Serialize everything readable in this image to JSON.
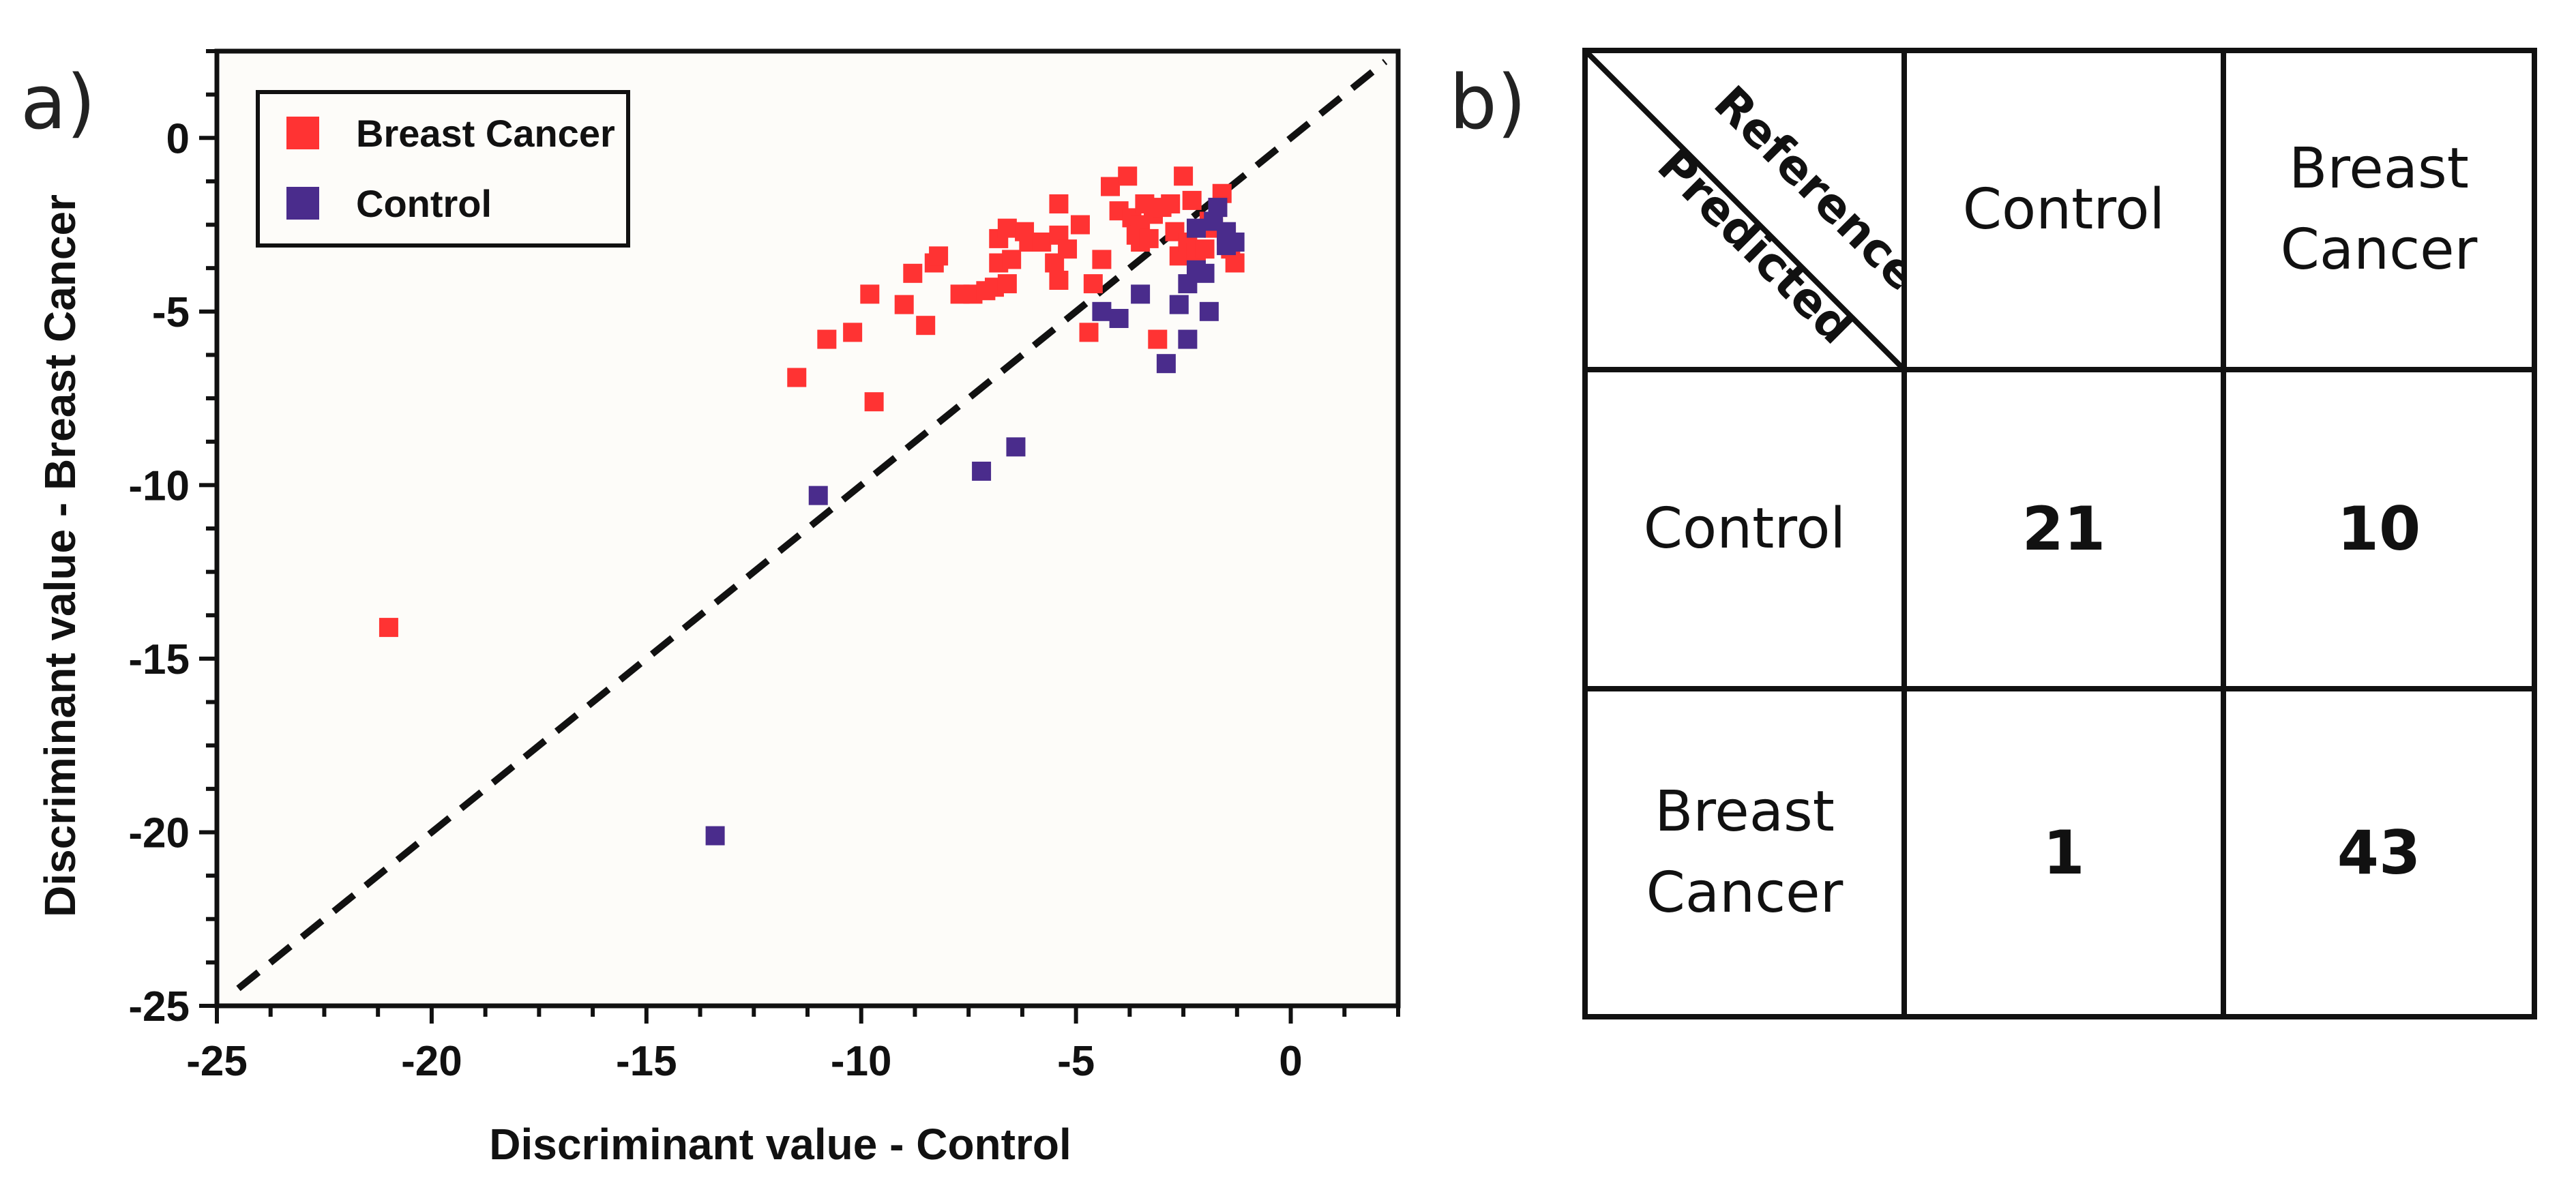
{
  "panels": {
    "a": "a)",
    "b": "b)"
  },
  "chart_data": {
    "type": "scatter",
    "xlabel": "Discriminant value - Control",
    "ylabel": "Discriminant value - Breast Cancer",
    "xlim": [
      -25,
      2.5
    ],
    "ylim": [
      -25,
      2.5
    ],
    "xticks": [
      -25,
      -20,
      -15,
      -10,
      -5,
      0
    ],
    "xtick_labels": [
      "-25",
      "-20",
      "-15",
      "-10",
      "-5",
      "0"
    ],
    "yticks": [
      -25,
      -20,
      -15,
      -10,
      -5,
      0
    ],
    "ytick_labels": [
      "-25",
      "-20",
      "-15",
      "-10",
      "-5",
      "0"
    ],
    "legend_position": "top-left",
    "reference_line": {
      "style": "dashed",
      "slope": 1,
      "intercept": 0,
      "color": "#111111"
    },
    "series": [
      {
        "name": "Breast Cancer",
        "color": "#ff3333",
        "points": [
          [
            -21.0,
            -14.1
          ],
          [
            -11.5,
            -6.9
          ],
          [
            -10.8,
            -5.8
          ],
          [
            -10.2,
            -5.6
          ],
          [
            -9.8,
            -4.5
          ],
          [
            -9.7,
            -7.6
          ],
          [
            -9.0,
            -4.8
          ],
          [
            -8.8,
            -3.9
          ],
          [
            -8.5,
            -5.4
          ],
          [
            -8.3,
            -3.6
          ],
          [
            -8.2,
            -3.4
          ],
          [
            -7.7,
            -4.5
          ],
          [
            -7.4,
            -4.5
          ],
          [
            -7.1,
            -4.4
          ],
          [
            -6.9,
            -4.3
          ],
          [
            -6.8,
            -2.9
          ],
          [
            -6.8,
            -3.6
          ],
          [
            -6.6,
            -2.6
          ],
          [
            -6.6,
            -4.2
          ],
          [
            -6.5,
            -3.5
          ],
          [
            -6.2,
            -2.7
          ],
          [
            -6.1,
            -3.0
          ],
          [
            -5.8,
            -3.0
          ],
          [
            -5.5,
            -3.6
          ],
          [
            -5.4,
            -4.1
          ],
          [
            -5.4,
            -2.8
          ],
          [
            -5.4,
            -1.9
          ],
          [
            -5.2,
            -3.2
          ],
          [
            -4.9,
            -2.5
          ],
          [
            -4.7,
            -5.6
          ],
          [
            -4.6,
            -4.2
          ],
          [
            -4.4,
            -3.5
          ],
          [
            -4.2,
            -1.4
          ],
          [
            -4.0,
            -2.1
          ],
          [
            -3.8,
            -1.1
          ],
          [
            -3.7,
            -2.3
          ],
          [
            -3.6,
            -2.8
          ],
          [
            -3.5,
            -2.5
          ],
          [
            -3.5,
            -3.0
          ],
          [
            -3.4,
            -1.9
          ],
          [
            -3.3,
            -2.9
          ],
          [
            -3.2,
            -2.2
          ],
          [
            -3.1,
            -5.8
          ],
          [
            -3.0,
            -2.0
          ],
          [
            -2.8,
            -1.9
          ],
          [
            -2.7,
            -2.7
          ],
          [
            -2.6,
            -3.4
          ],
          [
            -2.5,
            -1.1
          ],
          [
            -2.4,
            -3.0
          ],
          [
            -2.3,
            -1.8
          ],
          [
            -2.2,
            -3.3
          ],
          [
            -2.0,
            -3.2
          ],
          [
            -1.9,
            -2.4
          ],
          [
            -1.8,
            -2.6
          ],
          [
            -1.7,
            -2.0
          ],
          [
            -1.6,
            -1.6
          ],
          [
            -1.5,
            -2.8
          ],
          [
            -1.4,
            -3.2
          ],
          [
            -1.3,
            -3.6
          ]
        ]
      },
      {
        "name": "Control",
        "color": "#4a2c8c",
        "points": [
          [
            -13.4,
            -20.1
          ],
          [
            -11.0,
            -10.3
          ],
          [
            -7.2,
            -9.6
          ],
          [
            -6.4,
            -8.9
          ],
          [
            -4.4,
            -5.0
          ],
          [
            -4.0,
            -5.2
          ],
          [
            -3.5,
            -4.5
          ],
          [
            -2.9,
            -6.5
          ],
          [
            -2.6,
            -4.8
          ],
          [
            -2.4,
            -5.8
          ],
          [
            -2.4,
            -4.2
          ],
          [
            -2.2,
            -3.8
          ],
          [
            -2.2,
            -2.6
          ],
          [
            -2.0,
            -3.9
          ],
          [
            -1.9,
            -5.0
          ],
          [
            -1.8,
            -2.4
          ],
          [
            -1.7,
            -2.0
          ],
          [
            -1.5,
            -2.7
          ],
          [
            -1.5,
            -3.1
          ],
          [
            -1.3,
            -3.0
          ]
        ]
      }
    ]
  },
  "confusion_matrix": {
    "corner_top": "Reference",
    "corner_bottom": "Predicted",
    "col_headers": [
      "Control",
      "Breast Cancer"
    ],
    "rows": [
      {
        "label": "Control",
        "values": [
          "21",
          "10"
        ]
      },
      {
        "label": "Breast Cancer",
        "values": [
          "1",
          "43"
        ]
      }
    ]
  }
}
